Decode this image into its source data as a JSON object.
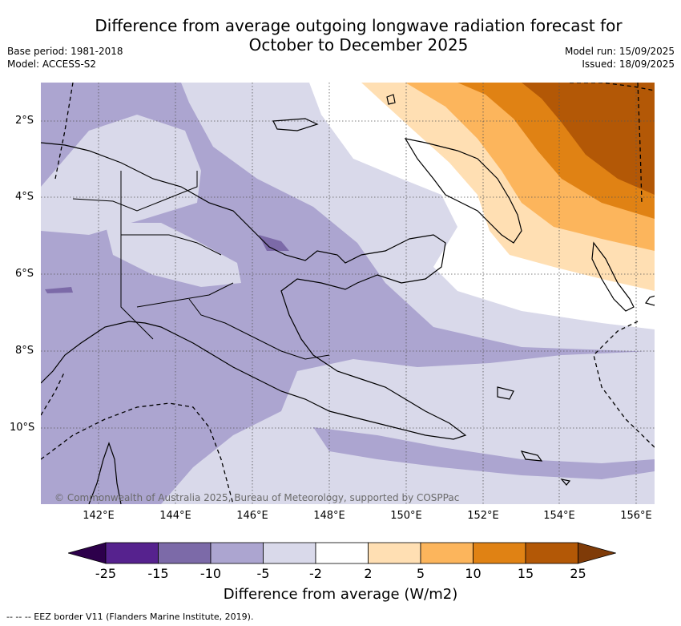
{
  "title": {
    "line1": "Difference from average outgoing longwave radiation forecast for",
    "line2": "October to December 2025"
  },
  "meta_left": {
    "base_period": "Base period: 1981-2018",
    "model": "Model: ACCESS-S2"
  },
  "meta_right": {
    "model_run": "Model run: 15/09/2025",
    "issued": "Issued: 18/09/2025"
  },
  "copyright": "© Commonwealth of Australia 2025, Bureau of Meteorology, supported by COSPPac",
  "latitude_ticks": [
    "2°S",
    "4°S",
    "6°S",
    "8°S",
    "10°S"
  ],
  "longitude_ticks": [
    "142°E",
    "144°E",
    "146°E",
    "148°E",
    "150°E",
    "152°E",
    "154°E",
    "156°E"
  ],
  "colorbar": {
    "labels": [
      "-25",
      "-15",
      "-10",
      "-5",
      "-2",
      "2",
      "5",
      "10",
      "15",
      "25"
    ],
    "colors": [
      "#56228e",
      "#7c6aa8",
      "#aca5d0",
      "#d9d9ea",
      "#ffffff",
      "#ffdfb3",
      "#fcb55c",
      "#e08214",
      "#b35806"
    ],
    "under_color": "#2d004b",
    "over_color": "#7f3b08",
    "title": "Difference from average (W/m2)"
  },
  "footnote": "--  --  -- EEZ border V11 (Flanders Marine Institute, 2019)."
}
